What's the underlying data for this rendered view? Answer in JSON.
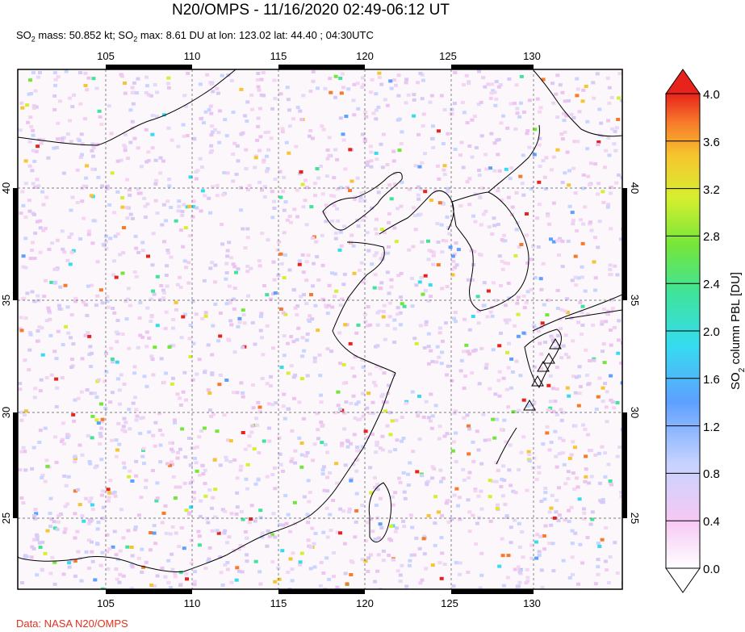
{
  "title": "N20/OMPS - 11/16/2020 02:49-06:12 UT",
  "subtitle": {
    "p1": "SO",
    "sub1": "2",
    "p2": " mass: 50.852 kt; SO",
    "sub2": "2",
    "p3": " max: 8.61 DU at lon: 123.02 lat: 44.40 ; 04:30UTC"
  },
  "credit": "Data: NASA N20/OMPS",
  "map": {
    "lon_ticks": [
      "105",
      "110",
      "115",
      "120",
      "125",
      "130"
    ],
    "lat_ticks": [
      "40",
      "35",
      "30",
      "25"
    ],
    "volcano_markers": 5
  },
  "colorbar": {
    "label_prefix": "SO",
    "label_sub": "2",
    "label_suffix": " column PBL [DU]",
    "ticks": [
      "4.0",
      "3.6",
      "3.2",
      "2.8",
      "2.4",
      "2.0",
      "1.6",
      "1.2",
      "0.8",
      "0.4",
      "0.0"
    ],
    "colors": [
      "#ffffff",
      "#f6c8f4",
      "#c7d3ff",
      "#5ea0ff",
      "#35dcf0",
      "#3fe39a",
      "#74e63a",
      "#d6ef2f",
      "#f6c52f",
      "#f7792a",
      "#e8231c"
    ]
  }
}
